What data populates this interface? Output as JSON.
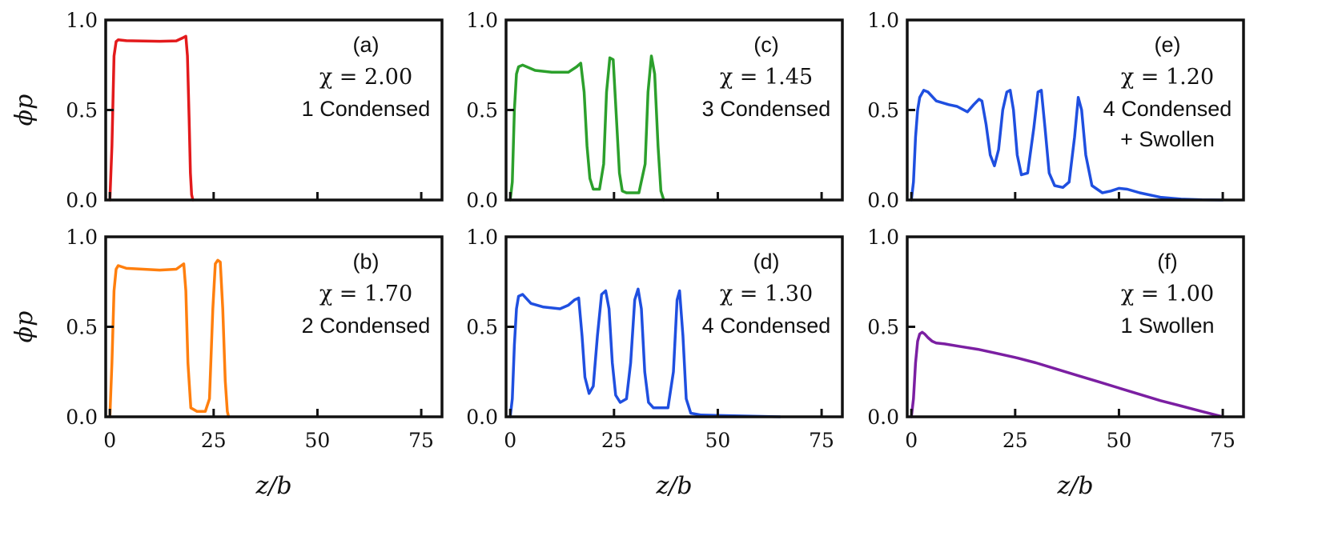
{
  "chart_data": [
    {
      "type": "line",
      "id": "a",
      "panel_label": "(a)",
      "chi_label": "χ = 2.00",
      "state_label": [
        "1 Condensed"
      ],
      "color": "#e31a1c",
      "xlim": [
        -1,
        80
      ],
      "ylim": [
        0,
        1
      ],
      "xticks": [
        "0",
        "25",
        "50",
        "75"
      ],
      "yticks": [
        "0.0",
        "0.5",
        "1.0"
      ],
      "ylabel": "ϕp",
      "xlabel": "",
      "x": [
        0,
        0.5,
        1,
        1.5,
        2,
        4,
        8,
        12,
        16,
        17.5,
        18.3,
        18.7,
        19.1,
        19.4,
        19.7,
        20
      ],
      "y": [
        0,
        0.3,
        0.8,
        0.88,
        0.89,
        0.885,
        0.883,
        0.882,
        0.884,
        0.9,
        0.91,
        0.8,
        0.45,
        0.15,
        0.03,
        0
      ]
    },
    {
      "type": "line",
      "id": "b",
      "panel_label": "(b)",
      "chi_label": "χ = 1.70",
      "state_label": [
        "2 Condensed"
      ],
      "color": "#ff7f0e",
      "xlim": [
        -1,
        80
      ],
      "ylim": [
        0,
        1
      ],
      "xticks": [
        "0",
        "25",
        "50",
        "75"
      ],
      "yticks": [
        "0.0",
        "0.5",
        "1.0"
      ],
      "ylabel": "ϕp",
      "xlabel": "z/b",
      "x": [
        0,
        0.5,
        1,
        1.5,
        2,
        4,
        8,
        12,
        16,
        17.2,
        17.8,
        18.3,
        18.8,
        19.5,
        21,
        23,
        24,
        24.8,
        25.4,
        26,
        26.6,
        27.2,
        27.8,
        28.3,
        28.6
      ],
      "y": [
        0,
        0.3,
        0.7,
        0.82,
        0.84,
        0.825,
        0.82,
        0.815,
        0.82,
        0.84,
        0.85,
        0.7,
        0.3,
        0.05,
        0.03,
        0.03,
        0.1,
        0.6,
        0.85,
        0.87,
        0.86,
        0.6,
        0.2,
        0.03,
        0
      ]
    },
    {
      "type": "line",
      "id": "c",
      "panel_label": "(c)",
      "chi_label": "χ = 1.45",
      "state_label": [
        "3 Condensed"
      ],
      "color": "#2ca02c",
      "xlim": [
        -1,
        80
      ],
      "ylim": [
        0,
        1
      ],
      "xticks": [
        "0",
        "25",
        "50",
        "75"
      ],
      "yticks": [
        "0.0",
        "0.5",
        "1.0"
      ],
      "ylabel": "",
      "xlabel": "",
      "x": [
        0,
        0.5,
        1,
        1.5,
        2,
        3,
        6,
        10,
        14,
        16,
        17,
        17.8,
        18.5,
        19.2,
        20,
        21.5,
        22.5,
        23.2,
        24,
        24.8,
        25.6,
        26.3,
        27,
        28,
        31,
        32.5,
        33.2,
        34,
        34.8,
        35.6,
        36.3,
        37
      ],
      "y": [
        0,
        0.1,
        0.5,
        0.7,
        0.74,
        0.75,
        0.72,
        0.71,
        0.71,
        0.74,
        0.76,
        0.6,
        0.3,
        0.12,
        0.06,
        0.06,
        0.2,
        0.6,
        0.79,
        0.78,
        0.45,
        0.15,
        0.05,
        0.04,
        0.04,
        0.2,
        0.6,
        0.8,
        0.7,
        0.3,
        0.05,
        0
      ]
    },
    {
      "type": "line",
      "id": "d",
      "panel_label": "(d)",
      "chi_label": "χ = 1.30",
      "state_label": [
        "4 Condensed"
      ],
      "color": "#1f4fe0",
      "xlim": [
        -1,
        80
      ],
      "ylim": [
        0,
        1
      ],
      "xticks": [
        "0",
        "25",
        "50",
        "75"
      ],
      "yticks": [
        "0.0",
        "0.5",
        "1.0"
      ],
      "ylabel": "",
      "xlabel": "z/b",
      "x": [
        0,
        0.5,
        1,
        1.5,
        2,
        3,
        5,
        8,
        12,
        14,
        15.5,
        16.5,
        17.3,
        18,
        19,
        20,
        21,
        22,
        23,
        23.8,
        24.6,
        25.4,
        26.5,
        28,
        29,
        30,
        30.8,
        31.6,
        32.4,
        33.3,
        34.5,
        38,
        39.3,
        40.2,
        40.8,
        41.6,
        42.4,
        43.5,
        46,
        55,
        65
      ],
      "y": [
        0,
        0.1,
        0.4,
        0.6,
        0.67,
        0.68,
        0.63,
        0.61,
        0.6,
        0.62,
        0.65,
        0.66,
        0.45,
        0.22,
        0.13,
        0.17,
        0.45,
        0.68,
        0.7,
        0.6,
        0.3,
        0.12,
        0.08,
        0.1,
        0.3,
        0.65,
        0.71,
        0.6,
        0.25,
        0.08,
        0.05,
        0.05,
        0.25,
        0.65,
        0.7,
        0.45,
        0.1,
        0.02,
        0.01,
        0.005,
        0
      ]
    },
    {
      "type": "line",
      "id": "e",
      "panel_label": "(e)",
      "chi_label": "χ = 1.20",
      "state_label": [
        "4 Condensed",
        "+ Swollen"
      ],
      "color": "#1f4fe0",
      "xlim": [
        -1,
        80
      ],
      "ylim": [
        0,
        1
      ],
      "xticks": [
        "0",
        "25",
        "50",
        "75"
      ],
      "yticks": [
        "0.0",
        "0.5",
        "1.0"
      ],
      "ylabel": "",
      "xlabel": "",
      "x": [
        0,
        0.5,
        1,
        1.5,
        2,
        3,
        4,
        6,
        9,
        11,
        13.5,
        15,
        16.3,
        17,
        18,
        19,
        20,
        21,
        22,
        23,
        23.8,
        24.6,
        25.5,
        26.5,
        28,
        29.5,
        30.5,
        31.3,
        32.2,
        33.2,
        34.5,
        36.5,
        38,
        39.3,
        40.2,
        41,
        42,
        43.5,
        46,
        48,
        50,
        52,
        55,
        60,
        65,
        70,
        75
      ],
      "y": [
        0,
        0.1,
        0.35,
        0.5,
        0.57,
        0.61,
        0.6,
        0.55,
        0.53,
        0.52,
        0.49,
        0.53,
        0.56,
        0.55,
        0.42,
        0.25,
        0.19,
        0.28,
        0.5,
        0.6,
        0.61,
        0.5,
        0.25,
        0.14,
        0.15,
        0.4,
        0.6,
        0.61,
        0.4,
        0.15,
        0.08,
        0.07,
        0.1,
        0.35,
        0.57,
        0.5,
        0.25,
        0.08,
        0.04,
        0.05,
        0.065,
        0.06,
        0.04,
        0.015,
        0.005,
        0.001,
        0
      ]
    },
    {
      "type": "line",
      "id": "f",
      "panel_label": "(f)",
      "chi_label": "χ = 1.00",
      "state_label": [
        "1 Swollen"
      ],
      "color": "#7b1fa2",
      "xlim": [
        -1,
        80
      ],
      "ylim": [
        0,
        1
      ],
      "xticks": [
        "0",
        "25",
        "50",
        "75"
      ],
      "yticks": [
        "0.0",
        "0.5",
        "1.0"
      ],
      "ylabel": "",
      "xlabel": "z/b",
      "x": [
        0,
        0.5,
        1,
        1.5,
        2,
        2.6,
        3.2,
        4,
        5,
        6,
        8,
        12,
        16,
        20,
        25,
        30,
        35,
        40,
        45,
        50,
        55,
        60,
        65,
        70,
        73,
        75
      ],
      "y": [
        0,
        0.1,
        0.3,
        0.42,
        0.46,
        0.47,
        0.46,
        0.44,
        0.42,
        0.41,
        0.405,
        0.39,
        0.375,
        0.355,
        0.33,
        0.3,
        0.265,
        0.23,
        0.195,
        0.16,
        0.125,
        0.09,
        0.06,
        0.03,
        0.012,
        0
      ]
    }
  ]
}
